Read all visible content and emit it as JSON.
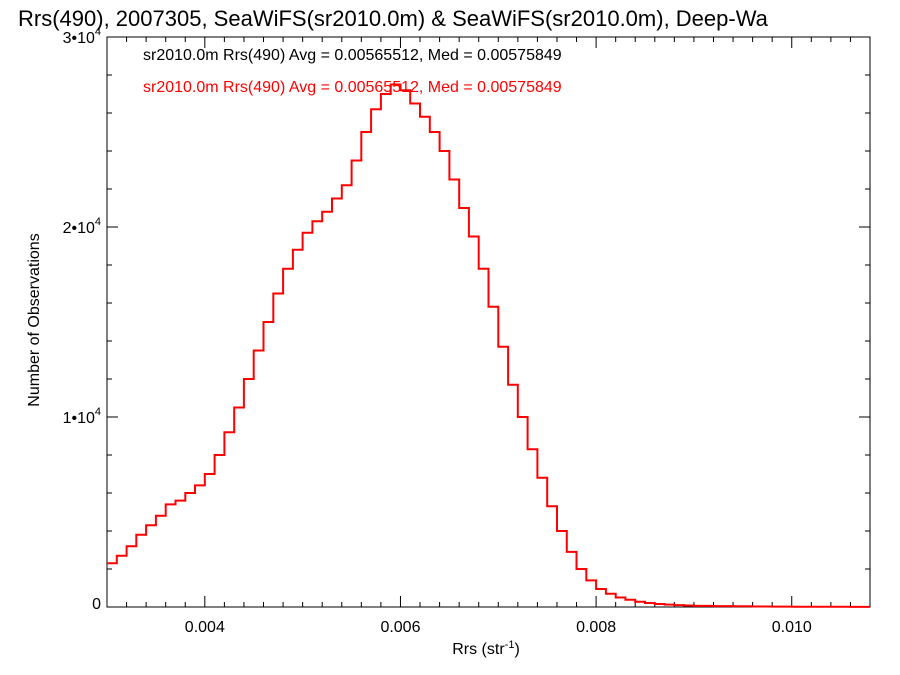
{
  "chart_data": {
    "type": "line",
    "title": "Rrs(490), 2007305, SeaWiFS(sr2010.0m) & SeaWiFS(sr2010.0m), Deep-Wa",
    "xlabel": "Rrs (str",
    "xlabel_sup": "-1",
    "xlabel_suffix": ")",
    "ylabel": "Number of Observations",
    "xlim": [
      0.003,
      0.0108
    ],
    "ylim": [
      0,
      30000
    ],
    "x_ticks": [
      0.004,
      0.006,
      0.008,
      0.01
    ],
    "x_tick_labels": [
      "0.004",
      "0.006",
      "0.008",
      "0.010"
    ],
    "y_ticks": [
      0,
      10000,
      20000,
      30000
    ],
    "y_tick_labels": [
      {
        "base": "0",
        "sup": ""
      },
      {
        "base": "1•10",
        "sup": "4"
      },
      {
        "base": "2•10",
        "sup": "4"
      },
      {
        "base": "3•10",
        "sup": "4"
      }
    ],
    "legend_entries": [
      {
        "text": "sr2010.0m Rrs(490) Avg = 0.00565512, Med = 0.00575849",
        "color": "#000000"
      },
      {
        "text": "sr2010.0m Rrs(490) Avg = 0.00565512, Med = 0.00575849",
        "color": "#ff0000"
      }
    ],
    "series": [
      {
        "color": "#ff0000",
        "step": true,
        "x": [
          0.003,
          0.0031,
          0.0032,
          0.0033,
          0.0034,
          0.0035,
          0.0036,
          0.0037,
          0.0038,
          0.0039,
          0.004,
          0.0041,
          0.0042,
          0.0043,
          0.0044,
          0.0045,
          0.0046,
          0.0047,
          0.0048,
          0.0049,
          0.005,
          0.0051,
          0.0052,
          0.0053,
          0.0054,
          0.0055,
          0.0056,
          0.0057,
          0.0058,
          0.0059,
          0.006,
          0.0061,
          0.0062,
          0.0063,
          0.0064,
          0.0065,
          0.0066,
          0.0067,
          0.0068,
          0.0069,
          0.007,
          0.0071,
          0.0072,
          0.0073,
          0.0074,
          0.0075,
          0.0076,
          0.0077,
          0.0078,
          0.0079,
          0.008,
          0.0081,
          0.0082,
          0.0083,
          0.0084,
          0.0085,
          0.0086,
          0.0087,
          0.0088,
          0.0089,
          0.009,
          0.0092,
          0.0094,
          0.0096,
          0.0098,
          0.01,
          0.0102,
          0.0104,
          0.0106,
          0.0108
        ],
        "values": [
          2300,
          2700,
          3200,
          3800,
          4300,
          4800,
          5400,
          5600,
          6000,
          6400,
          7000,
          8000,
          9200,
          10500,
          12000,
          13500,
          15000,
          16500,
          17800,
          18800,
          19700,
          20300,
          20800,
          21500,
          22200,
          23500,
          25000,
          26200,
          27000,
          27500,
          27200,
          26500,
          25800,
          25000,
          24000,
          22500,
          21000,
          19500,
          17800,
          15800,
          13700,
          11700,
          10000,
          8300,
          6800,
          5300,
          4000,
          2900,
          2000,
          1400,
          950,
          700,
          500,
          380,
          280,
          210,
          160,
          125,
          100,
          80,
          60,
          45,
          35,
          25,
          20,
          15,
          10,
          8,
          5,
          3
        ]
      }
    ]
  }
}
